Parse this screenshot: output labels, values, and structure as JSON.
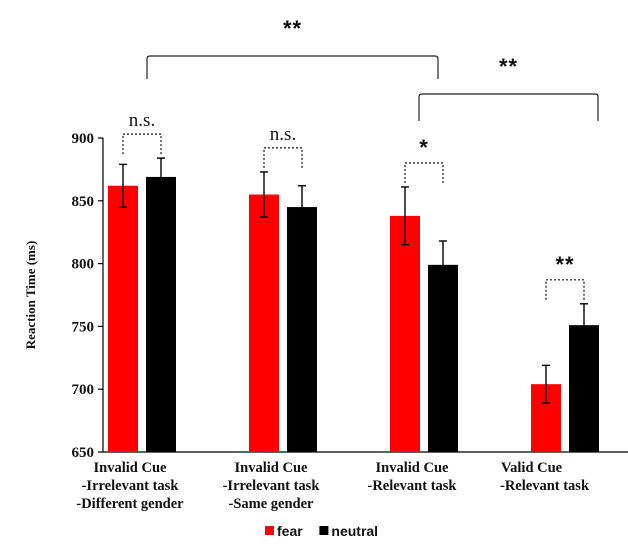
{
  "chart_data": {
    "type": "bar",
    "ylabel": "Reaction Time (ms)",
    "ylim": [
      650,
      900
    ],
    "yticks": [
      650,
      700,
      750,
      800,
      850,
      900
    ],
    "grid": false,
    "legend_position": "bottom-center",
    "categories": [
      [
        "Invalid Cue",
        "-Irrelevant task",
        "-Different gender"
      ],
      [
        "Invalid Cue",
        "-Irrelevant task",
        "-Same gender"
      ],
      [
        "Invalid Cue",
        "-Relevant task"
      ],
      [
        "Valid Cue",
        "-Relevant task"
      ]
    ],
    "series": [
      {
        "name": "fear",
        "color": "#ff0000",
        "values": [
          862,
          855,
          838,
          704
        ],
        "errors": [
          17,
          18,
          23,
          15
        ]
      },
      {
        "name": "neutral",
        "color": "#000000",
        "values": [
          869,
          845,
          799,
          751
        ],
        "errors": [
          15,
          17,
          19,
          17
        ]
      }
    ],
    "annotations": [
      {
        "label": "n.s.",
        "type": "pair",
        "category": 0
      },
      {
        "label": "n.s.",
        "type": "pair",
        "category": 1
      },
      {
        "label": "*",
        "type": "pair",
        "category": 2
      },
      {
        "label": "**",
        "type": "pair",
        "category": 3
      },
      {
        "label": "**",
        "type": "span",
        "from_category": 0,
        "to_category": 2
      },
      {
        "label": "**",
        "type": "span",
        "from_category": 2,
        "to_category": 3
      }
    ]
  }
}
